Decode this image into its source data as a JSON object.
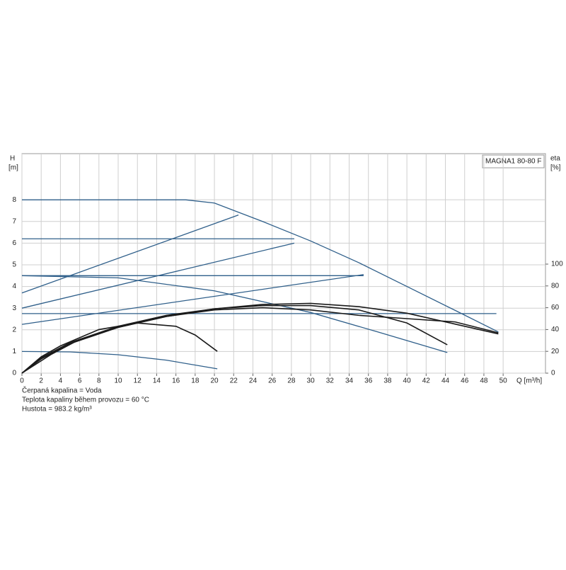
{
  "chart_data": {
    "type": "line",
    "title": "MAGNA1 80-80 F",
    "y_label": "H",
    "y_unit": "[m]",
    "y2_label": "eta",
    "y2_unit": "[%]",
    "x_label": "Q [m³/h]",
    "annotations": [
      "Čerpaná kapalina = Voda",
      "Teplota kapaliny během provozu = 60 °C",
      "Hustota = 983.2 kg/m³"
    ],
    "xlim": [
      0,
      54.4
    ],
    "xticks": [
      0,
      2,
      4,
      6,
      8,
      10,
      12,
      14,
      16,
      18,
      20,
      22,
      24,
      26,
      28,
      30,
      32,
      34,
      36,
      38,
      40,
      42,
      44,
      46,
      48,
      50
    ],
    "ylim": [
      0,
      10.13
    ],
    "yticks": [
      0,
      1,
      2,
      3,
      4,
      5,
      6,
      7,
      8
    ],
    "y2lim": [
      0,
      201.3
    ],
    "y2ticks": [
      0,
      20,
      40,
      60,
      80,
      100
    ],
    "grid": true,
    "series": [
      {
        "color": "#2f5f8a",
        "x": [
          0,
          17,
          20,
          25,
          30,
          35,
          40,
          45,
          49.5
        ],
        "values": [
          8,
          8,
          7.85,
          7.0,
          6.1,
          5.1,
          4.0,
          2.9,
          1.9
        ]
      },
      {
        "color": "#2f5f8a",
        "x": [
          0,
          28.3
        ],
        "values": [
          6.2,
          6.2
        ]
      },
      {
        "color": "#2f5f8a",
        "x": [
          0,
          35.5
        ],
        "values": [
          4.5,
          4.5
        ]
      },
      {
        "color": "#2f5f8a",
        "x": [
          0,
          49.3
        ],
        "values": [
          2.75,
          2.75
        ]
      },
      {
        "color": "#2f5f8a",
        "x": [
          0,
          22.5
        ],
        "values": [
          3.7,
          7.3
        ]
      },
      {
        "color": "#2f5f8a",
        "x": [
          0,
          28.3
        ],
        "values": [
          3.0,
          6.0
        ]
      },
      {
        "color": "#2f5f8a",
        "x": [
          0,
          35.5
        ],
        "values": [
          2.25,
          4.55
        ]
      },
      {
        "color": "#2f5f8a",
        "x": [
          0,
          10,
          20,
          30,
          37,
          44.2
        ],
        "values": [
          4.5,
          4.4,
          3.8,
          2.8,
          1.9,
          0.95
        ]
      },
      {
        "color": "#2f5f8a",
        "x": [
          0,
          5,
          10,
          15,
          20.3
        ],
        "values": [
          1.0,
          0.98,
          0.85,
          0.6,
          0.2
        ]
      },
      {
        "color": "#1a1a1a",
        "axis": "y2",
        "x": [
          0,
          2,
          4,
          8,
          12,
          16,
          18,
          20.3
        ],
        "values": [
          0,
          15,
          25,
          40,
          46,
          43,
          35,
          20
        ]
      },
      {
        "color": "#1a1a1a",
        "axis": "y2",
        "x": [
          0,
          2,
          5,
          10,
          15,
          20,
          25,
          30,
          35,
          40,
          44.2
        ],
        "values": [
          0,
          14,
          28,
          43,
          53,
          59,
          62,
          62,
          58,
          46,
          26
        ]
      },
      {
        "color": "#1a1a1a",
        "axis": "y2",
        "x": [
          0,
          2,
          5,
          10,
          15,
          20,
          25,
          30,
          35,
          40,
          45,
          49.5
        ],
        "values": [
          0,
          13,
          27,
          42,
          52,
          59,
          63,
          64,
          61,
          55,
          45,
          36
        ]
      },
      {
        "color": "#1a1a1a",
        "axis": "y2",
        "x": [
          0,
          3,
          6,
          10,
          15,
          20,
          25,
          30,
          35,
          40,
          45,
          49.5
        ],
        "values": [
          0,
          17,
          31,
          42,
          52,
          58,
          60,
          58,
          53,
          50,
          47,
          37
        ]
      }
    ]
  }
}
